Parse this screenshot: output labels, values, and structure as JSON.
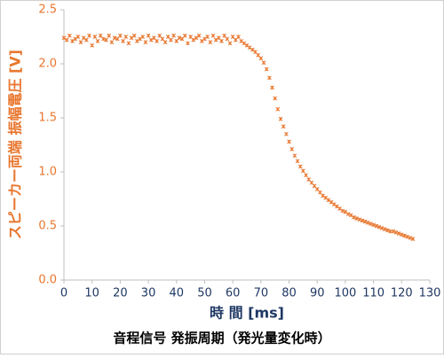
{
  "chart_data": {
    "type": "scatter",
    "y_label": "スピーカー両端 振幅電圧 [V]",
    "x_label": "時 間 [ms]",
    "caption": "音程信号 発振周期（発光量変化時）",
    "color": "#e8762e",
    "x": [
      0,
      1,
      2,
      3,
      4,
      5,
      6,
      7,
      8,
      9,
      10,
      11,
      12,
      13,
      14,
      15,
      16,
      17,
      18,
      19,
      20,
      21,
      22,
      23,
      24,
      25,
      26,
      27,
      28,
      29,
      30,
      31,
      32,
      33,
      34,
      35,
      36,
      37,
      38,
      39,
      40,
      41,
      42,
      43,
      44,
      45,
      46,
      47,
      48,
      49,
      50,
      51,
      52,
      53,
      54,
      55,
      56,
      57,
      58,
      59,
      60,
      61,
      62,
      63,
      64,
      65,
      66,
      67,
      68,
      69,
      70,
      71,
      72,
      73,
      74,
      75,
      76,
      77,
      78,
      79,
      80,
      81,
      82,
      83,
      84,
      85,
      86,
      87,
      88,
      89,
      90,
      91,
      92,
      93,
      94,
      95,
      96,
      97,
      98,
      99,
      100,
      101,
      102,
      103,
      104,
      105,
      106,
      107,
      108,
      109,
      110,
      111,
      112,
      113,
      114,
      115,
      116,
      117,
      118,
      119,
      120,
      121,
      122,
      123,
      124
    ],
    "values": [
      2.24,
      2.22,
      2.26,
      2.21,
      2.23,
      2.25,
      2.2,
      2.24,
      2.22,
      2.26,
      2.17,
      2.25,
      2.21,
      2.26,
      2.23,
      2.22,
      2.26,
      2.2,
      2.24,
      2.23,
      2.26,
      2.21,
      2.25,
      2.19,
      2.24,
      2.26,
      2.21,
      2.23,
      2.25,
      2.2,
      2.26,
      2.22,
      2.24,
      2.21,
      2.26,
      2.23,
      2.2,
      2.25,
      2.22,
      2.26,
      2.21,
      2.24,
      2.23,
      2.26,
      2.19,
      2.25,
      2.22,
      2.24,
      2.26,
      2.21,
      2.23,
      2.25,
      2.2,
      2.26,
      2.22,
      2.24,
      2.21,
      2.26,
      2.23,
      2.19,
      2.25,
      2.22,
      2.25,
      2.21,
      2.19,
      2.17,
      2.15,
      2.13,
      2.11,
      2.08,
      2.05,
      2.01,
      1.95,
      1.87,
      1.78,
      1.68,
      1.58,
      1.49,
      1.42,
      1.35,
      1.28,
      1.21,
      1.15,
      1.1,
      1.05,
      1.01,
      0.97,
      0.93,
      0.9,
      0.87,
      0.84,
      0.81,
      0.78,
      0.76,
      0.74,
      0.72,
      0.7,
      0.68,
      0.66,
      0.64,
      0.63,
      0.61,
      0.6,
      0.58,
      0.57,
      0.56,
      0.55,
      0.54,
      0.53,
      0.52,
      0.51,
      0.5,
      0.49,
      0.48,
      0.47,
      0.46,
      0.45,
      0.45,
      0.44,
      0.43,
      0.42,
      0.41,
      0.4,
      0.39,
      0.38
    ],
    "xlim": [
      0,
      130
    ],
    "xticks": [
      0,
      10,
      20,
      30,
      40,
      50,
      60,
      70,
      80,
      90,
      100,
      110,
      120,
      130
    ],
    "ylim": [
      0,
      2.5
    ],
    "yticks": [
      {
        "value": 0,
        "label": "0.0"
      },
      0.5,
      {
        "value": 1,
        "label": "1.0"
      },
      1.5,
      {
        "value": 2,
        "label": "2.0"
      },
      2.5
    ]
  }
}
